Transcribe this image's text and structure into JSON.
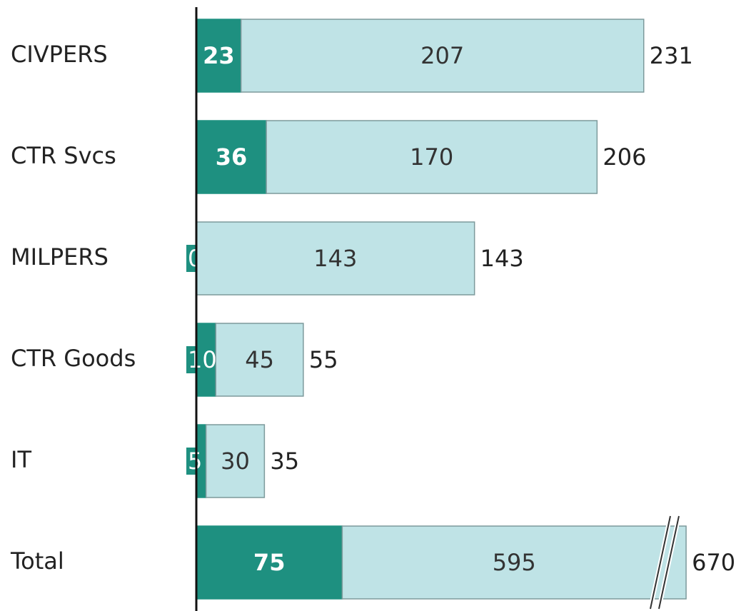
{
  "chart_data": {
    "type": "stacked_bar_horizontal",
    "categories": [
      "CIVPERS",
      "CTR Svcs",
      "MILPERS",
      "CTR Goods",
      "IT",
      "Total"
    ],
    "series": [
      {
        "color": "#1e9080",
        "values": [
          23,
          36,
          0,
          10,
          5,
          75
        ]
      },
      {
        "color": "#bfe3e6",
        "values": [
          207,
          170,
          143,
          45,
          30,
          595
        ]
      }
    ],
    "totals": [
      231,
      206,
      143,
      55,
      35,
      670
    ],
    "xlim": [
      0,
      240
    ],
    "axis_break": true
  }
}
